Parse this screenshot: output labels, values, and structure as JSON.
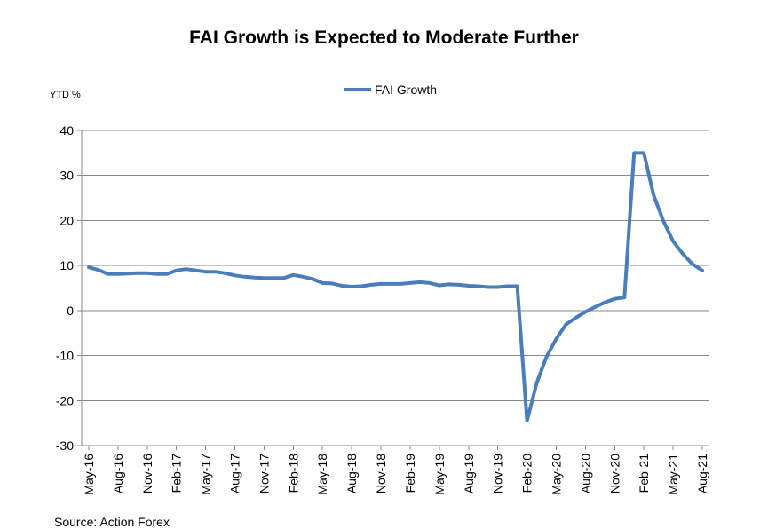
{
  "chart_data": {
    "type": "line",
    "title": "FAI Growth is Expected to Moderate Further",
    "ylabel": "YTD %",
    "xlabel": "",
    "ylim": [
      -30,
      40
    ],
    "yticks": [
      40,
      30,
      20,
      10,
      0,
      -10,
      -20,
      -30
    ],
    "legend": "top-center",
    "grid": true,
    "series_color": "#4a7ebb",
    "x_tick_labels": [
      "May-16",
      "Aug-16",
      "Nov-16",
      "Feb-17",
      "May-17",
      "Aug-17",
      "Nov-17",
      "Feb-18",
      "May-18",
      "Aug-18",
      "Nov-18",
      "Feb-19",
      "May-19",
      "Aug-19",
      "Nov-19",
      "Feb-20",
      "May-20",
      "Aug-20",
      "Nov-20",
      "Feb-21",
      "May-21",
      "Aug-21"
    ],
    "series": [
      {
        "name": "FAI Growth",
        "x": [
          "May-16",
          "Jun-16",
          "Jul-16",
          "Aug-16",
          "Sep-16",
          "Oct-16",
          "Nov-16",
          "Dec-16",
          "Jan-17",
          "Feb-17",
          "Mar-17",
          "Apr-17",
          "May-17",
          "Jun-17",
          "Jul-17",
          "Aug-17",
          "Sep-17",
          "Oct-17",
          "Nov-17",
          "Dec-17",
          "Jan-18",
          "Feb-18",
          "Mar-18",
          "Apr-18",
          "May-18",
          "Jun-18",
          "Jul-18",
          "Aug-18",
          "Sep-18",
          "Oct-18",
          "Nov-18",
          "Dec-18",
          "Jan-19",
          "Feb-19",
          "Mar-19",
          "Apr-19",
          "May-19",
          "Jun-19",
          "Jul-19",
          "Aug-19",
          "Sep-19",
          "Oct-19",
          "Nov-19",
          "Dec-19",
          "Jan-20",
          "Feb-20",
          "Mar-20",
          "Apr-20",
          "May-20",
          "Jun-20",
          "Jul-20",
          "Aug-20",
          "Sep-20",
          "Oct-20",
          "Nov-20",
          "Dec-20",
          "Jan-21",
          "Feb-21",
          "Mar-21",
          "Apr-21",
          "May-21",
          "Jun-21",
          "Jul-21",
          "Aug-21"
        ],
        "values": [
          9.6,
          9.0,
          8.1,
          8.1,
          8.2,
          8.3,
          8.3,
          8.1,
          8.1,
          8.9,
          9.2,
          8.9,
          8.6,
          8.6,
          8.3,
          7.8,
          7.5,
          7.3,
          7.2,
          7.2,
          7.2,
          7.9,
          7.5,
          7.0,
          6.1,
          6.0,
          5.5,
          5.3,
          5.4,
          5.7,
          5.9,
          5.9,
          5.9,
          6.1,
          6.3,
          6.1,
          5.6,
          5.8,
          5.7,
          5.5,
          5.4,
          5.2,
          5.2,
          5.4,
          5.4,
          -24.5,
          -16.1,
          -10.3,
          -6.3,
          -3.1,
          -1.6,
          -0.3,
          0.8,
          1.8,
          2.6,
          2.9,
          35.0,
          35.0,
          25.6,
          19.9,
          15.4,
          12.6,
          10.3,
          8.9
        ]
      }
    ]
  },
  "source": "Source: Action Forex"
}
